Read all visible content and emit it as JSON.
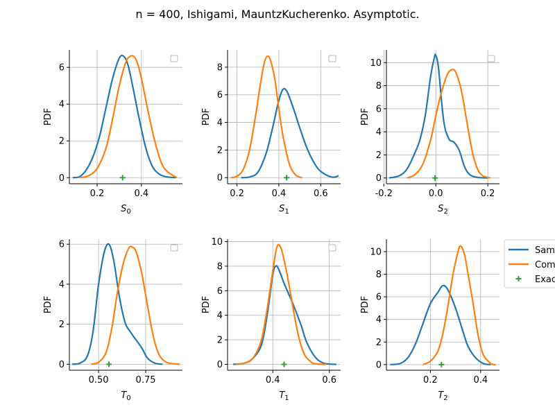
{
  "figure": {
    "title": "n = 400, Ishigami, MauntzKucherenko. Asymptotic.",
    "legend": {
      "entries": [
        "Sample",
        "Computed",
        "Exact"
      ],
      "colors": [
        "#1f77b4",
        "#ff7f0e",
        "#2ca02c"
      ]
    }
  },
  "chart_data": [
    {
      "type": "line",
      "xlabel_main": "S",
      "xlabel_sub": "0",
      "ylabel": "PDF",
      "xlim": [
        0.075,
        0.585
      ],
      "ylim": [
        -0.33,
        6.95
      ],
      "xticks": [
        0.2,
        0.4
      ],
      "xticklabels": [
        "0.2",
        "0.4"
      ],
      "yticks": [
        0,
        2,
        4,
        6
      ],
      "yticklabels": [
        "0",
        "2",
        "4",
        "6"
      ],
      "grid": true,
      "empty_legend": true,
      "series": [
        {
          "color": "#1f77b4",
          "x": [
            0.09,
            0.12,
            0.15,
            0.18,
            0.21,
            0.24,
            0.27,
            0.3,
            0.32,
            0.34,
            0.36,
            0.39,
            0.42,
            0.45,
            0.48,
            0.51,
            0.555
          ],
          "y": [
            0,
            0.05,
            0.4,
            1.1,
            2.2,
            3.8,
            5.4,
            6.5,
            6.6,
            6.1,
            5.0,
            3.2,
            1.6,
            0.6,
            0.2,
            0.05,
            0
          ]
        },
        {
          "color": "#ff7f0e",
          "x": [
            0.12,
            0.16,
            0.2,
            0.24,
            0.27,
            0.3,
            0.33,
            0.35,
            0.365,
            0.38,
            0.4,
            0.43,
            0.46,
            0.49,
            0.52,
            0.56
          ],
          "y": [
            0,
            0.1,
            0.5,
            1.6,
            3.2,
            5.0,
            6.3,
            6.6,
            6.6,
            6.3,
            5.4,
            3.6,
            2.0,
            0.8,
            0.3,
            0
          ]
        }
      ],
      "exact": {
        "x": 0.315,
        "y": 0
      }
    },
    {
      "type": "line",
      "xlabel_main": "S",
      "xlabel_sub": "1",
      "ylabel": "PDF",
      "xlim": [
        0.155,
        0.695
      ],
      "ylim": [
        -0.44,
        9.25
      ],
      "xticks": [
        0.2,
        0.4,
        0.6
      ],
      "xticklabels": [
        "0.2",
        "0.4",
        "0.6"
      ],
      "yticks": [
        0,
        2,
        4,
        6,
        8
      ],
      "yticklabels": [
        "0",
        "2",
        "4",
        "6",
        "8"
      ],
      "grid": true,
      "empty_legend": true,
      "series": [
        {
          "color": "#1f77b4",
          "x": [
            0.22,
            0.26,
            0.3,
            0.34,
            0.37,
            0.4,
            0.42,
            0.44,
            0.47,
            0.5,
            0.53,
            0.56,
            0.59,
            0.62,
            0.65,
            0.67,
            0.685
          ],
          "y": [
            0,
            0.05,
            0.4,
            1.8,
            3.6,
            5.6,
            6.4,
            6.2,
            5.0,
            3.6,
            2.3,
            1.3,
            0.6,
            0.25,
            0.05,
            0.05,
            0.15
          ]
        },
        {
          "color": "#ff7f0e",
          "x": [
            0.17,
            0.2,
            0.23,
            0.26,
            0.29,
            0.31,
            0.33,
            0.345,
            0.36,
            0.38,
            0.4,
            0.42,
            0.45,
            0.48,
            0.51
          ],
          "y": [
            0,
            0.1,
            0.6,
            2.0,
            4.6,
            6.6,
            8.3,
            8.8,
            8.5,
            7.2,
            5.0,
            3.0,
            1.0,
            0.2,
            0
          ]
        }
      ],
      "exact": {
        "x": 0.437,
        "y": 0
      }
    },
    {
      "type": "line",
      "xlabel_main": "S",
      "xlabel_sub": "2",
      "ylabel": "PDF",
      "xlim": [
        -0.19,
        0.245
      ],
      "ylim": [
        -0.5,
        11.1
      ],
      "xticks": [
        -0.2,
        0.0,
        0.2
      ],
      "xticklabels": [
        "-0.2",
        "0.0",
        "0.2"
      ],
      "yticks": [
        0,
        2,
        4,
        6,
        8,
        10
      ],
      "yticklabels": [
        "0",
        "2",
        "4",
        "6",
        "8",
        "10"
      ],
      "grid": true,
      "empty_legend": true,
      "series": [
        {
          "color": "#1f77b4",
          "x": [
            -0.18,
            -0.14,
            -0.11,
            -0.08,
            -0.06,
            -0.04,
            -0.02,
            -0.005,
            0.0,
            0.01,
            0.03,
            0.05,
            0.07,
            0.09,
            0.11,
            0.13,
            0.16,
            0.2
          ],
          "y": [
            0,
            0.2,
            0.8,
            2.2,
            3.4,
            5.5,
            8.8,
            10.5,
            10.6,
            9.6,
            5.0,
            3.4,
            3.1,
            2.4,
            1.0,
            0.3,
            0.05,
            0
          ]
        },
        {
          "color": "#ff7f0e",
          "x": [
            -0.11,
            -0.08,
            -0.05,
            -0.02,
            0.0,
            0.02,
            0.045,
            0.065,
            0.08,
            0.1,
            0.12,
            0.14,
            0.16,
            0.18,
            0.21
          ],
          "y": [
            0,
            0.3,
            1.2,
            3.3,
            5.4,
            7.3,
            9.0,
            9.4,
            9.0,
            7.4,
            4.8,
            2.3,
            0.8,
            0.2,
            0
          ]
        }
      ],
      "exact": {
        "x": -0.003,
        "y": 0
      }
    },
    {
      "type": "line",
      "xlabel_main": "T",
      "xlabel_sub": "0",
      "ylabel": "PDF",
      "xlim": [
        0.345,
        0.945
      ],
      "ylim": [
        -0.3,
        6.25
      ],
      "xticks": [
        0.5,
        0.75
      ],
      "xticklabels": [
        "0.50",
        "0.75"
      ],
      "yticks": [
        0,
        2,
        4,
        6
      ],
      "yticklabels": [
        "0",
        "2",
        "4",
        "6"
      ],
      "grid": true,
      "empty_legend": true,
      "series": [
        {
          "color": "#1f77b4",
          "x": [
            0.36,
            0.4,
            0.44,
            0.47,
            0.5,
            0.53,
            0.555,
            0.58,
            0.61,
            0.64,
            0.67,
            0.7,
            0.73,
            0.76,
            0.8,
            0.84
          ],
          "y": [
            0,
            0.05,
            0.4,
            1.6,
            4.0,
            5.6,
            6.0,
            5.2,
            3.4,
            2.1,
            1.6,
            1.2,
            0.8,
            0.3,
            0.05,
            0
          ]
        },
        {
          "color": "#ff7f0e",
          "x": [
            0.46,
            0.5,
            0.54,
            0.57,
            0.6,
            0.63,
            0.66,
            0.68,
            0.7,
            0.73,
            0.76,
            0.79,
            0.82,
            0.86,
            0.93
          ],
          "y": [
            0,
            0.1,
            0.6,
            1.8,
            3.6,
            5.0,
            5.8,
            5.85,
            5.6,
            4.5,
            2.9,
            1.4,
            0.5,
            0.1,
            0
          ]
        }
      ],
      "exact": {
        "x": 0.555,
        "y": 0
      }
    },
    {
      "type": "line",
      "xlabel_main": "T",
      "xlabel_sub": "1",
      "ylabel": "PDF",
      "xlim": [
        0.24,
        0.64
      ],
      "ylim": [
        -0.48,
        10.2
      ],
      "xticks": [
        0.4,
        0.6
      ],
      "xticklabels": [
        "0.4",
        "0.6"
      ],
      "yticks": [
        0,
        2,
        4,
        6,
        8,
        10
      ],
      "yticklabels": [
        "0",
        "2",
        "4",
        "6",
        "8",
        "10"
      ],
      "grid": true,
      "empty_legend": true,
      "series": [
        {
          "color": "#1f77b4",
          "x": [
            0.26,
            0.3,
            0.33,
            0.36,
            0.38,
            0.4,
            0.41,
            0.42,
            0.44,
            0.47,
            0.5,
            0.52,
            0.55,
            0.58,
            0.625
          ],
          "y": [
            0,
            0.1,
            0.5,
            1.6,
            4.0,
            7.3,
            8.0,
            7.8,
            6.6,
            5.0,
            3.2,
            1.8,
            0.6,
            0.1,
            0
          ]
        },
        {
          "color": "#ff7f0e",
          "x": [
            0.27,
            0.3,
            0.33,
            0.36,
            0.38,
            0.4,
            0.415,
            0.43,
            0.45,
            0.47,
            0.49,
            0.51,
            0.53,
            0.55,
            0.59
          ],
          "y": [
            0,
            0.1,
            0.5,
            2.0,
            4.5,
            7.6,
            9.6,
            9.4,
            7.4,
            4.8,
            2.4,
            0.9,
            0.3,
            0.05,
            0
          ]
        }
      ],
      "exact": {
        "x": 0.44,
        "y": 0
      }
    },
    {
      "type": "line",
      "xlabel_main": "T",
      "xlabel_sub": "2",
      "ylabel": "PDF",
      "xlim": [
        0.025,
        0.475
      ],
      "ylim": [
        -0.5,
        11.1
      ],
      "xticks": [
        0.2,
        0.4
      ],
      "xticklabels": [
        "0.2",
        "0.4"
      ],
      "yticks": [
        0,
        2,
        4,
        6,
        8,
        10
      ],
      "yticklabels": [
        "0",
        "2",
        "4",
        "6",
        "8",
        "10"
      ],
      "grid": true,
      "empty_legend": false,
      "series": [
        {
          "name": "Sample",
          "color": "#1f77b4",
          "x": [
            0.04,
            0.08,
            0.11,
            0.14,
            0.17,
            0.2,
            0.23,
            0.25,
            0.27,
            0.3,
            0.33,
            0.35,
            0.38,
            0.41,
            0.44
          ],
          "y": [
            0,
            0.1,
            0.6,
            1.8,
            3.6,
            5.4,
            6.4,
            7.0,
            6.6,
            5.0,
            2.9,
            1.6,
            0.6,
            0.1,
            0
          ]
        },
        {
          "name": "Computed",
          "color": "#ff7f0e",
          "x": [
            0.17,
            0.2,
            0.23,
            0.25,
            0.27,
            0.29,
            0.31,
            0.32,
            0.335,
            0.35,
            0.37,
            0.39,
            0.41,
            0.44,
            0.46
          ],
          "y": [
            0,
            0.3,
            1.2,
            2.8,
            5.2,
            8.0,
            10.0,
            10.5,
            9.8,
            8.0,
            5.4,
            2.6,
            0.9,
            0.1,
            0
          ]
        }
      ],
      "exact": {
        "name": "Exact",
        "x": 0.244,
        "y": 0
      }
    }
  ]
}
